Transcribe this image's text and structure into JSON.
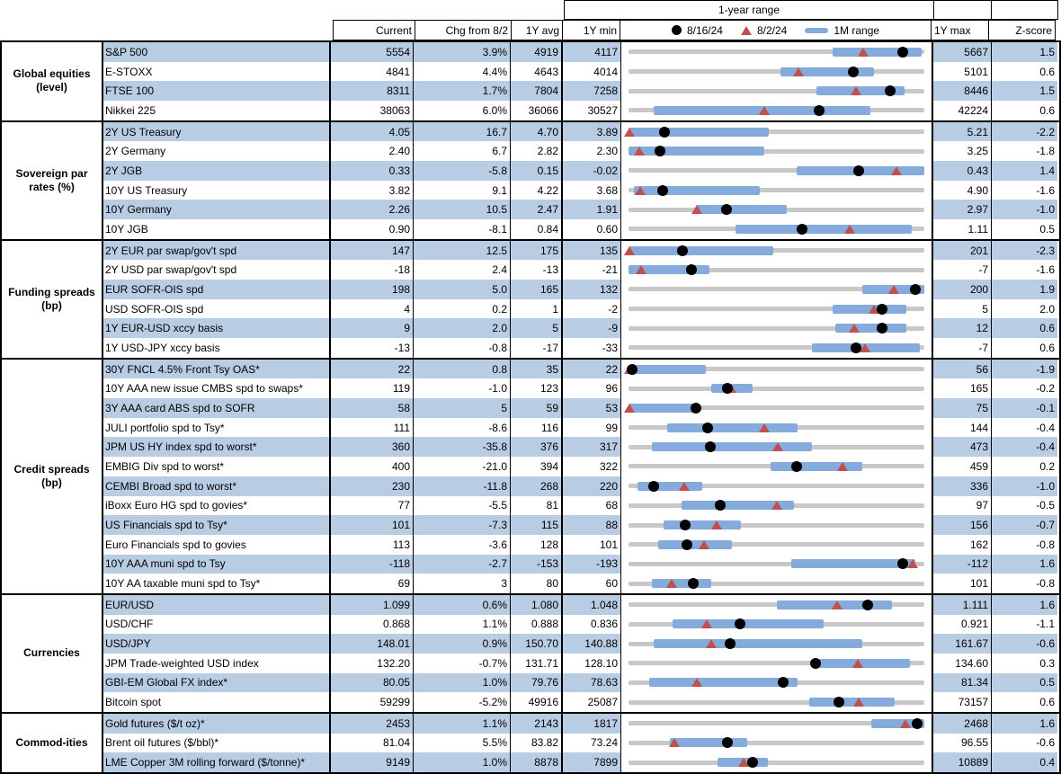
{
  "header": {
    "range_title": "1-year range",
    "col_current": "Current",
    "col_chg": "Chg from 8/2",
    "col_avg": "1Y avg",
    "col_min": "1Y min",
    "col_max": "1Y max",
    "col_z": "Z-score",
    "legend": [
      {
        "marker": "black-dot",
        "label": "8/16/24"
      },
      {
        "marker": "red-triangle",
        "label": "8/2/24"
      },
      {
        "marker": "blue-bar",
        "label": "1M range"
      }
    ]
  },
  "colors": {
    "row_shade": "#B8CCE4",
    "range_bar_blue": "#84ABDB",
    "triangle_red": "#C0504D",
    "dot_black": "#000000",
    "track_gray": "#C8C8C8",
    "border_black": "#000000"
  },
  "chart_data": {
    "type": "range-dot-table",
    "note": "dot = 8/16/24 value, tri = 8/2/24 value, bar = 1M range; fractions are position within [1Y min, 1Y max]",
    "sections": [
      {
        "group": "Global equities (level)",
        "rows": [
          {
            "label": "S&P 500",
            "current": "5554",
            "chg": "3.9%",
            "avg": "4919",
            "min": "4117",
            "max": "5667",
            "z": "1.5",
            "dot": 0.927,
            "tri": 0.793,
            "bar": [
              0.69,
              0.99
            ]
          },
          {
            "label": "E-STOXX",
            "current": "4841",
            "chg": "4.4%",
            "avg": "4643",
            "min": "4014",
            "max": "5101",
            "z": "0.6",
            "dot": 0.761,
            "tri": 0.573,
            "bar": [
              0.513,
              0.83
            ]
          },
          {
            "label": "FTSE 100",
            "current": "8311",
            "chg": "1.7%",
            "avg": "7804",
            "min": "7258",
            "max": "8446",
            "z": "1.5",
            "dot": 0.886,
            "tri": 0.769,
            "bar": [
              0.634,
              0.934
            ]
          },
          {
            "label": "Nikkei 225",
            "current": "38063",
            "chg": "6.0%",
            "avg": "36066",
            "min": "30527",
            "max": "42224",
            "z": "0.6",
            "dot": 0.644,
            "tri": 0.46,
            "bar": [
              0.084,
              0.817
            ]
          }
        ]
      },
      {
        "group": "Sovereign par rates (%)",
        "rows": [
          {
            "label": "2Y US Treasury",
            "current": "4.05",
            "chg": "16.7",
            "avg": "4.70",
            "min": "3.89",
            "max": "5.21",
            "z": "-2.2",
            "dot": 0.121,
            "tri": 0.004,
            "bar": [
              0,
              0.475
            ]
          },
          {
            "label": "2Y Germany",
            "current": "2.40",
            "chg": "6.7",
            "avg": "2.82",
            "min": "2.30",
            "max": "3.25",
            "z": "-1.8",
            "dot": 0.105,
            "tri": 0.035,
            "bar": [
              0,
              0.459
            ]
          },
          {
            "label": "2Y JGB",
            "current": "0.33",
            "chg": "-5.8",
            "avg": "0.15",
            "min": "-0.02",
            "max": "0.43",
            "z": "1.4",
            "dot": 0.778,
            "tri": 0.907,
            "bar": [
              0.568,
              1
            ]
          },
          {
            "label": "10Y US Treasury",
            "current": "3.82",
            "chg": "9.1",
            "avg": "4.22",
            "min": "3.68",
            "max": "4.90",
            "z": "-1.6",
            "dot": 0.115,
            "tri": 0.04,
            "bar": [
              0.018,
              0.444
            ]
          },
          {
            "label": "10Y Germany",
            "current": "2.26",
            "chg": "10.5",
            "avg": "2.47",
            "min": "1.91",
            "max": "2.97",
            "z": "-1.0",
            "dot": 0.33,
            "tri": 0.231,
            "bar": [
              0.228,
              0.534
            ]
          },
          {
            "label": "10Y JGB",
            "current": "0.90",
            "chg": "-8.1",
            "avg": "0.84",
            "min": "0.60",
            "max": "1.11",
            "z": "0.5",
            "dot": 0.588,
            "tri": 0.747,
            "bar": [
              0.363,
              0.958
            ]
          }
        ]
      },
      {
        "group": "Funding spreads (bp)",
        "rows": [
          {
            "label": "2Y EUR par swap/gov't spd",
            "current": "147",
            "chg": "12.5",
            "avg": "175",
            "min": "135",
            "max": "201",
            "z": "-2.3",
            "dot": 0.182,
            "tri": 0.004,
            "bar": [
              0,
              0.49
            ]
          },
          {
            "label": "2Y USD par swap/gov't spd",
            "current": "-18",
            "chg": "2.4",
            "avg": "-13",
            "min": "-21",
            "max": "-7",
            "z": "-1.6",
            "dot": 0.214,
            "tri": 0.043,
            "bar": [
              0,
              0.273
            ]
          },
          {
            "label": "EUR SOFR-OIS spd",
            "current": "198",
            "chg": "5.0",
            "avg": "165",
            "min": "132",
            "max": "200",
            "z": "1.9",
            "dot": 0.971,
            "tri": 0.897,
            "bar": [
              0.79,
              1
            ]
          },
          {
            "label": "USD SOFR-OIS spd",
            "current": "4",
            "chg": "0.2",
            "avg": "1",
            "min": "-2",
            "max": "5",
            "z": "2.0",
            "dot": 0.857,
            "tri": 0.829,
            "bar": [
              0.69,
              0.94
            ]
          },
          {
            "label": "1Y EUR-USD xccy basis",
            "current": "9",
            "chg": "2.0",
            "avg": "5",
            "min": "-9",
            "max": "12",
            "z": "0.6",
            "dot": 0.857,
            "tri": 0.762,
            "bar": [
              0.7,
              0.94
            ]
          },
          {
            "label": "1Y USD-JPY xccy basis",
            "current": "-13",
            "chg": "-0.8",
            "avg": "-17",
            "min": "-33",
            "max": "-7",
            "z": "0.6",
            "dot": 0.769,
            "tri": 0.8,
            "bar": [
              0.62,
              0.985
            ]
          }
        ]
      },
      {
        "group": "Credit spreads (bp)",
        "rows": [
          {
            "label": "30Y FNCL 4.5% Front Tsy OAS*",
            "current": "22",
            "chg": "0.8",
            "avg": "35",
            "min": "22",
            "max": "56",
            "z": "-1.9",
            "dot": 0.012,
            "tri": 0.004,
            "bar": [
              0,
              0.26
            ]
          },
          {
            "label": "10Y AAA new issue CMBS spd to swaps*",
            "current": "119",
            "chg": "-1.0",
            "avg": "123",
            "min": "96",
            "max": "165",
            "z": "-0.2",
            "dot": 0.333,
            "tri": 0.348,
            "bar": [
              0.28,
              0.42
            ]
          },
          {
            "label": "3Y AAA card ABS spd to SOFR",
            "current": "58",
            "chg": "5",
            "avg": "59",
            "min": "53",
            "max": "75",
            "z": "-0.1",
            "dot": 0.227,
            "tri": 0.004,
            "bar": [
              0,
              0.23
            ]
          },
          {
            "label": "JULI portfolio spd to Tsy*",
            "current": "111",
            "chg": "-8.6",
            "avg": "116",
            "min": "99",
            "max": "144",
            "z": "-0.4",
            "dot": 0.267,
            "tri": 0.458,
            "bar": [
              0.13,
              0.57
            ]
          },
          {
            "label": "JPM US HY index spd to worst*",
            "current": "360",
            "chg": "-35.8",
            "avg": "376",
            "min": "317",
            "max": "473",
            "z": "-0.4",
            "dot": 0.276,
            "tri": 0.505,
            "bar": [
              0.08,
              0.62
            ]
          },
          {
            "label": "EMBIG Div spd to worst*",
            "current": "400",
            "chg": "-21.0",
            "avg": "394",
            "min": "322",
            "max": "459",
            "z": "0.2",
            "dot": 0.569,
            "tri": 0.723,
            "bar": [
              0.48,
              0.79
            ]
          },
          {
            "label": "CEMBI Broad spd to worst*",
            "current": "230",
            "chg": "-11.8",
            "avg": "268",
            "min": "220",
            "max": "336",
            "z": "-1.0",
            "dot": 0.086,
            "tri": 0.188,
            "bar": [
              0.03,
              0.25
            ]
          },
          {
            "label": "iBoxx Euro HG spd to govies*",
            "current": "77",
            "chg": "-5.5",
            "avg": "81",
            "min": "68",
            "max": "97",
            "z": "-0.5",
            "dot": 0.31,
            "tri": 0.5,
            "bar": [
              0.18,
              0.56
            ]
          },
          {
            "label": "US Financials spd to Tsy*",
            "current": "101",
            "chg": "-7.3",
            "avg": "115",
            "min": "88",
            "max": "156",
            "z": "-0.7",
            "dot": 0.191,
            "tri": 0.299,
            "bar": [
              0.12,
              0.38
            ]
          },
          {
            "label": "Euro Financials spd to govies",
            "current": "113",
            "chg": "-3.6",
            "avg": "128",
            "min": "101",
            "max": "162",
            "z": "-0.8",
            "dot": 0.197,
            "tri": 0.256,
            "bar": [
              0.1,
              0.35
            ]
          },
          {
            "label": "10Y AAA muni spd to Tsy",
            "current": "-118",
            "chg": "-2.7",
            "avg": "-153",
            "min": "-193",
            "max": "-112",
            "z": "1.6",
            "dot": 0.926,
            "tri": 0.959,
            "bar": [
              0.55,
              0.97
            ]
          },
          {
            "label": "10Y AA taxable muni spd to Tsy*",
            "current": "69",
            "chg": "3",
            "avg": "80",
            "min": "60",
            "max": "101",
            "z": "-0.8",
            "dot": 0.22,
            "tri": 0.146,
            "bar": [
              0.08,
              0.28
            ]
          }
        ]
      },
      {
        "group": "Currencies",
        "rows": [
          {
            "label": "EUR/USD",
            "current": "1.099",
            "chg": "0.6%",
            "avg": "1.080",
            "min": "1.048",
            "max": "1.111",
            "z": "1.6",
            "dot": 0.81,
            "tri": 0.705,
            "bar": [
              0.5,
              0.89
            ]
          },
          {
            "label": "USD/CHF",
            "current": "0.868",
            "chg": "1.1%",
            "avg": "0.888",
            "min": "0.836",
            "max": "0.921",
            "z": "-1.1",
            "dot": 0.376,
            "tri": 0.265,
            "bar": [
              0.15,
              0.66
            ]
          },
          {
            "label": "USD/JPY",
            "current": "148.01",
            "chg": "0.9%",
            "avg": "150.70",
            "min": "140.88",
            "max": "161.67",
            "z": "-0.6",
            "dot": 0.343,
            "tri": 0.279,
            "bar": [
              0.086,
              0.79
            ]
          },
          {
            "label": "JPM Trade-weighted USD index",
            "current": "132.20",
            "chg": "-0.7%",
            "avg": "131.71",
            "min": "128.10",
            "max": "134.60",
            "z": "0.3",
            "dot": 0.631,
            "tri": 0.774,
            "bar": [
              0.63,
              0.95
            ]
          },
          {
            "label": "GBI-EM Global FX index*",
            "current": "80.05",
            "chg": "1.0%",
            "avg": "79.76",
            "min": "78.63",
            "max": "81.34",
            "z": "0.5",
            "dot": 0.524,
            "tri": 0.232,
            "bar": [
              0.07,
              0.57
            ]
          },
          {
            "label": "Bitcoin spot",
            "current": "59299",
            "chg": "-5.2%",
            "avg": "49916",
            "min": "25087",
            "max": "73157",
            "z": "0.6",
            "dot": 0.712,
            "tri": 0.779,
            "bar": [
              0.61,
              0.9
            ]
          }
        ]
      },
      {
        "group": "Commod-ities",
        "rows": [
          {
            "label": "Gold futures ($/t oz)*",
            "current": "2453",
            "chg": "1.1%",
            "avg": "2143",
            "min": "1817",
            "max": "2468",
            "z": "1.6",
            "dot": 0.977,
            "tri": 0.936,
            "bar": [
              0.82,
              1
            ]
          },
          {
            "label": "Brent oil futures ($/bbl)*",
            "current": "81.04",
            "chg": "5.5%",
            "avg": "83.82",
            "min": "73.24",
            "max": "96.55",
            "z": "-0.6",
            "dot": 0.335,
            "tri": 0.154,
            "bar": [
              0.14,
              0.4
            ]
          },
          {
            "label": "LME Copper 3M rolling forward ($/tonne)*",
            "current": "9149",
            "chg": "1.0%",
            "avg": "8878",
            "min": "7899",
            "max": "10889",
            "z": "0.4",
            "dot": 0.418,
            "tri": 0.388,
            "bar": [
              0.3,
              0.47
            ]
          }
        ]
      }
    ]
  }
}
